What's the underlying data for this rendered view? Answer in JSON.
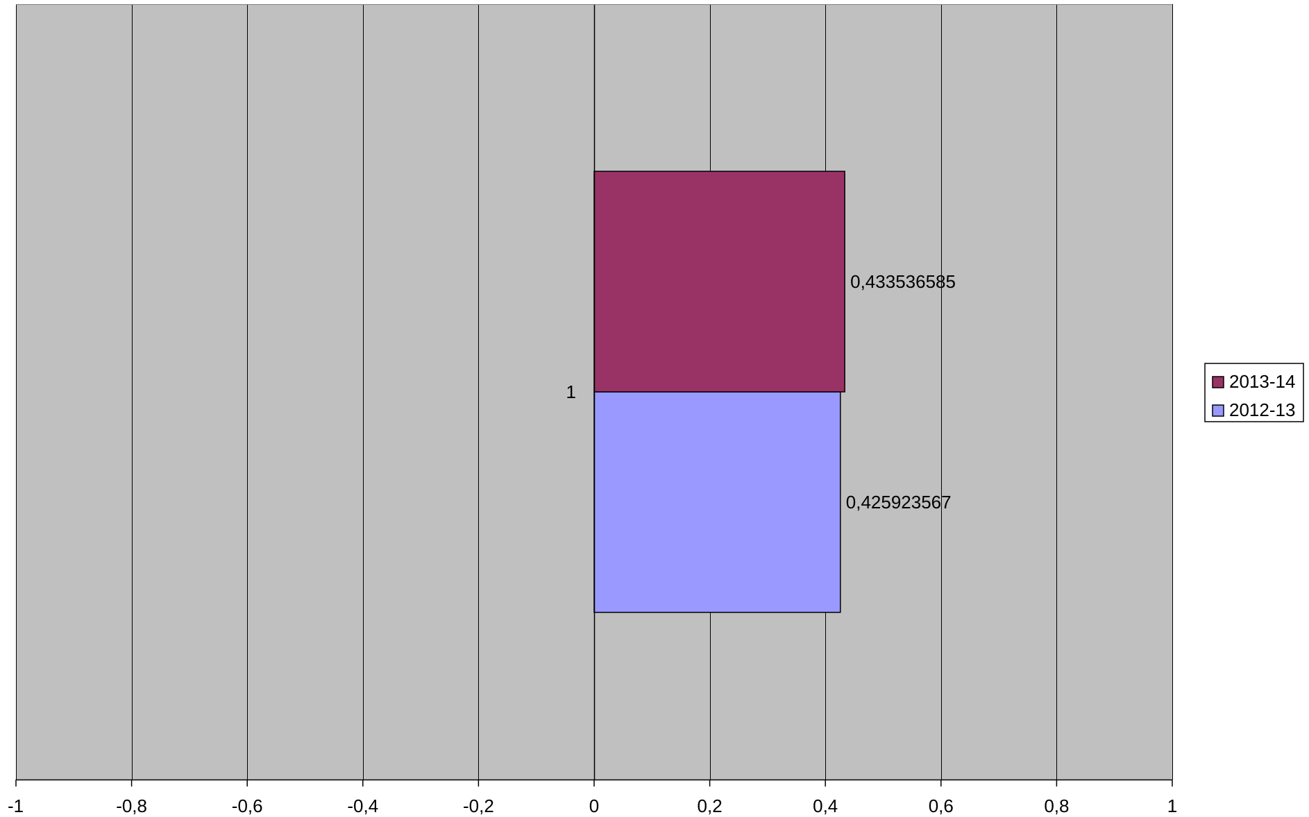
{
  "chart_data": {
    "type": "bar",
    "orientation": "horizontal",
    "categories": [
      "1"
    ],
    "series": [
      {
        "name": "2012-13",
        "values": [
          0.425923567
        ],
        "color": "#9999FF",
        "label": "0,425923567"
      },
      {
        "name": "2013-14",
        "values": [
          0.433536585
        ],
        "color": "#993366",
        "label": "0,433536585"
      }
    ],
    "xlim": [
      -1,
      1
    ],
    "xticks": [
      -1,
      -0.8,
      -0.6,
      -0.4,
      -0.2,
      0,
      0.2,
      0.4,
      0.6,
      0.8,
      1
    ],
    "xtick_labels": [
      "-1",
      "-0,8",
      "-0,6",
      "-0,4",
      "-0,2",
      "0",
      "0,2",
      "0,4",
      "0,6",
      "0,8",
      "1"
    ],
    "plot_background": "#C0C0C0",
    "grid": true,
    "legend": {
      "position": "right",
      "entries": [
        "2013-14",
        "2012-13"
      ]
    },
    "title": "",
    "xlabel": "",
    "ylabel": ""
  }
}
